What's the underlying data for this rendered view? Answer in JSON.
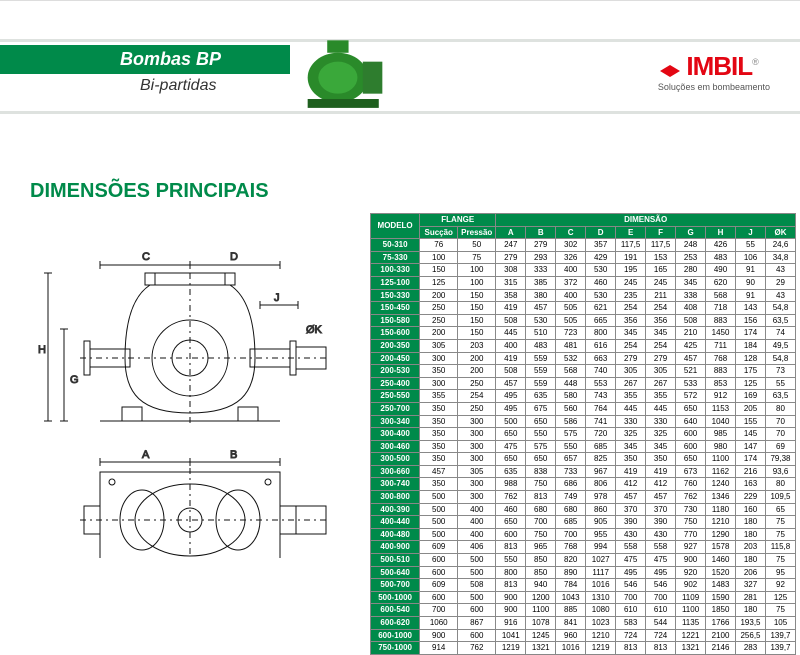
{
  "header": {
    "title": "Bombas  BP",
    "subtitle": "Bi-partidas",
    "logo_text": "IMBIL",
    "logo_tagline": "Soluções em bombeamento"
  },
  "section_title": "DIMENSÕES PRINCIPAIS",
  "table": {
    "head": {
      "modelo": "MODELO",
      "flange": "FLANGE",
      "dimensao": "DIMENSÃO",
      "succao": "Sucção",
      "pressao": "Pressão",
      "cols": [
        "A",
        "B",
        "C",
        "D",
        "E",
        "F",
        "G",
        "H",
        "J",
        "ØK"
      ]
    },
    "rows": [
      [
        "50-310",
        "76",
        "50",
        "247",
        "279",
        "302",
        "357",
        "117,5",
        "117,5",
        "248",
        "426",
        "55",
        "24,6"
      ],
      [
        "75-330",
        "100",
        "75",
        "279",
        "293",
        "326",
        "429",
        "191",
        "153",
        "253",
        "483",
        "106",
        "34,8"
      ],
      [
        "100-330",
        "150",
        "100",
        "308",
        "333",
        "400",
        "530",
        "195",
        "165",
        "280",
        "490",
        "91",
        "43"
      ],
      [
        "125-100",
        "125",
        "100",
        "315",
        "385",
        "372",
        "460",
        "245",
        "245",
        "345",
        "620",
        "90",
        "29"
      ],
      [
        "150-330",
        "200",
        "150",
        "358",
        "380",
        "400",
        "530",
        "235",
        "211",
        "338",
        "568",
        "91",
        "43"
      ],
      [
        "150-450",
        "250",
        "150",
        "419",
        "457",
        "505",
        "621",
        "254",
        "254",
        "408",
        "718",
        "143",
        "54,8"
      ],
      [
        "150-580",
        "250",
        "150",
        "508",
        "530",
        "505",
        "665",
        "356",
        "356",
        "508",
        "883",
        "156",
        "63,5"
      ],
      [
        "150-600",
        "200",
        "150",
        "445",
        "510",
        "723",
        "800",
        "345",
        "345",
        "210",
        "1450",
        "174",
        "74"
      ],
      [
        "200-350",
        "305",
        "203",
        "400",
        "483",
        "481",
        "616",
        "254",
        "254",
        "425",
        "711",
        "184",
        "49,5"
      ],
      [
        "200-450",
        "300",
        "200",
        "419",
        "559",
        "532",
        "663",
        "279",
        "279",
        "457",
        "768",
        "128",
        "54,8"
      ],
      [
        "200-530",
        "350",
        "200",
        "508",
        "559",
        "568",
        "740",
        "305",
        "305",
        "521",
        "883",
        "175",
        "73"
      ],
      [
        "250-400",
        "300",
        "250",
        "457",
        "559",
        "448",
        "553",
        "267",
        "267",
        "533",
        "853",
        "125",
        "55"
      ],
      [
        "250-550",
        "355",
        "254",
        "495",
        "635",
        "580",
        "743",
        "355",
        "355",
        "572",
        "912",
        "169",
        "63,5"
      ],
      [
        "250-700",
        "350",
        "250",
        "495",
        "675",
        "560",
        "764",
        "445",
        "445",
        "650",
        "1153",
        "205",
        "80"
      ],
      [
        "300-340",
        "350",
        "300",
        "500",
        "650",
        "586",
        "741",
        "330",
        "330",
        "640",
        "1040",
        "155",
        "70"
      ],
      [
        "300-400",
        "350",
        "300",
        "650",
        "550",
        "575",
        "720",
        "325",
        "325",
        "600",
        "985",
        "145",
        "70"
      ],
      [
        "300-460",
        "350",
        "300",
        "475",
        "575",
        "550",
        "685",
        "345",
        "345",
        "600",
        "980",
        "147",
        "69"
      ],
      [
        "300-500",
        "350",
        "300",
        "650",
        "650",
        "657",
        "825",
        "350",
        "350",
        "650",
        "1100",
        "174",
        "79,38"
      ],
      [
        "300-660",
        "457",
        "305",
        "635",
        "838",
        "733",
        "967",
        "419",
        "419",
        "673",
        "1162",
        "216",
        "93,6"
      ],
      [
        "300-740",
        "350",
        "300",
        "988",
        "750",
        "686",
        "806",
        "412",
        "412",
        "760",
        "1240",
        "163",
        "80"
      ],
      [
        "300-800",
        "500",
        "300",
        "762",
        "813",
        "749",
        "978",
        "457",
        "457",
        "762",
        "1346",
        "229",
        "109,5"
      ],
      [
        "400-390",
        "500",
        "400",
        "460",
        "680",
        "680",
        "860",
        "370",
        "370",
        "730",
        "1180",
        "160",
        "65"
      ],
      [
        "400-440",
        "500",
        "400",
        "650",
        "700",
        "685",
        "905",
        "390",
        "390",
        "750",
        "1210",
        "180",
        "75"
      ],
      [
        "400-480",
        "500",
        "400",
        "600",
        "750",
        "700",
        "955",
        "430",
        "430",
        "770",
        "1290",
        "180",
        "75"
      ],
      [
        "400-900",
        "609",
        "406",
        "813",
        "965",
        "768",
        "994",
        "558",
        "558",
        "927",
        "1578",
        "203",
        "115,8"
      ],
      [
        "500-510",
        "600",
        "500",
        "550",
        "850",
        "820",
        "1027",
        "475",
        "475",
        "900",
        "1460",
        "180",
        "75"
      ],
      [
        "500-640",
        "600",
        "500",
        "800",
        "850",
        "890",
        "1117",
        "495",
        "495",
        "920",
        "1520",
        "206",
        "95"
      ],
      [
        "500-700",
        "609",
        "508",
        "813",
        "940",
        "784",
        "1016",
        "546",
        "546",
        "902",
        "1483",
        "327",
        "92"
      ],
      [
        "500-1000",
        "600",
        "500",
        "900",
        "1200",
        "1043",
        "1310",
        "700",
        "700",
        "1109",
        "1590",
        "281",
        "125"
      ],
      [
        "600-540",
        "700",
        "600",
        "900",
        "1100",
        "885",
        "1080",
        "610",
        "610",
        "1100",
        "1850",
        "180",
        "75"
      ],
      [
        "600-620",
        "1060",
        "867",
        "916",
        "1078",
        "841",
        "1023",
        "583",
        "544",
        "1135",
        "1766",
        "193,5",
        "105"
      ],
      [
        "600-1000",
        "900",
        "600",
        "1041",
        "1245",
        "960",
        "1210",
        "724",
        "724",
        "1221",
        "2100",
        "256,5",
        "139,7"
      ],
      [
        "750-1000",
        "914",
        "762",
        "1219",
        "1321",
        "1016",
        "1219",
        "813",
        "813",
        "1321",
        "2146",
        "283",
        "139,7"
      ]
    ]
  },
  "diagram_labels": {
    "a": "A",
    "b": "B",
    "c": "C",
    "d": "D",
    "g": "G",
    "h": "H",
    "j": "J",
    "ok": "ØK"
  }
}
